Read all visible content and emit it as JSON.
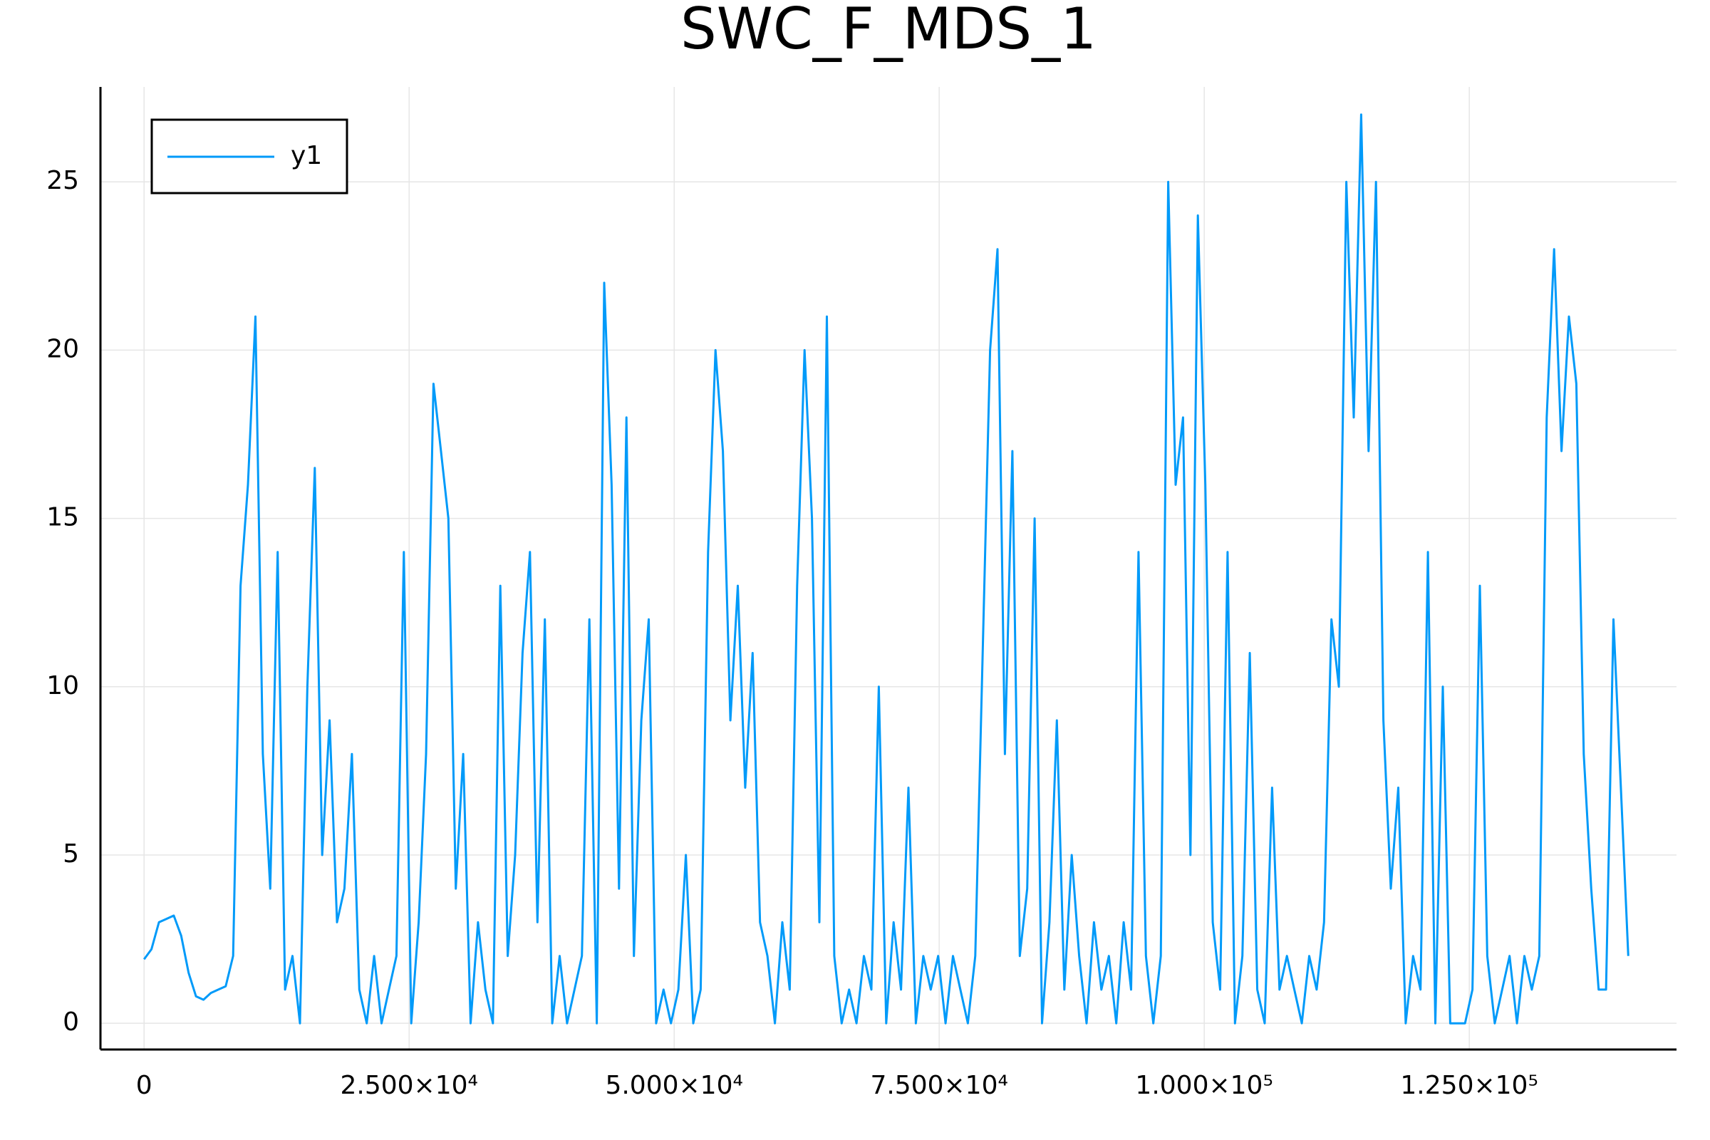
{
  "chart_data": {
    "type": "line",
    "title": "SWC_F_MDS_1",
    "grid": true,
    "legend": "top-left",
    "x": [
      0,
      700,
      1400,
      2100,
      2800,
      3500,
      4200,
      4900,
      5600,
      6300,
      7000,
      7700,
      8400,
      9100,
      9800,
      10500,
      11200,
      11900,
      12600,
      13300,
      14000,
      14700,
      15400,
      16100,
      16800,
      17500,
      18200,
      18900,
      19600,
      20300,
      21000,
      21700,
      22400,
      23100,
      23800,
      24500,
      25200,
      25900,
      26600,
      27300,
      28000,
      28700,
      29400,
      30100,
      30800,
      31500,
      32200,
      32900,
      33600,
      34300,
      35000,
      35700,
      36400,
      37100,
      37800,
      38500,
      39200,
      39900,
      40600,
      41300,
      42000,
      42700,
      43400,
      44100,
      44800,
      45500,
      46200,
      46900,
      47600,
      48300,
      49000,
      49700,
      50400,
      51100,
      51800,
      52500,
      53200,
      53900,
      54600,
      55300,
      56000,
      56700,
      57400,
      58100,
      58800,
      59500,
      60200,
      60900,
      61600,
      62300,
      63000,
      63700,
      64400,
      65100,
      65800,
      66500,
      67200,
      67900,
      68600,
      69300,
      70000,
      70700,
      71400,
      72100,
      72800,
      73500,
      74200,
      74900,
      75600,
      76300,
      77000,
      77700,
      78400,
      79100,
      79800,
      80500,
      81200,
      81900,
      82600,
      83300,
      84000,
      84700,
      85400,
      86100,
      86800,
      87500,
      88200,
      88900,
      89600,
      90300,
      91000,
      91700,
      92400,
      93100,
      93800,
      94500,
      95200,
      95900,
      96600,
      97300,
      98000,
      98700,
      99400,
      100100,
      100800,
      101500,
      102200,
      102900,
      103600,
      104300,
      105000,
      105700,
      106400,
      107100,
      107800,
      108500,
      109200,
      109900,
      110600,
      111300,
      112000,
      112700,
      113400,
      114100,
      114800,
      115500,
      116200,
      116900,
      117600,
      118300,
      119000,
      119700,
      120400,
      121100,
      121800,
      122500,
      123200,
      123900,
      124600,
      125300,
      126000,
      126700,
      127400,
      128100,
      128800,
      129500,
      130200,
      130900,
      131600,
      132300,
      133000,
      133700,
      134400,
      135100,
      135800,
      136500,
      137200,
      137900,
      138600,
      139300,
      140000
    ],
    "series": [
      {
        "name": "y1",
        "color": "#009af9",
        "values": [
          1.9,
          2.2,
          3.0,
          3.1,
          3.2,
          2.6,
          1.5,
          0.8,
          0.7,
          0.9,
          1.0,
          1.1,
          2,
          13,
          16,
          21,
          8,
          4,
          14,
          1,
          2,
          0,
          10,
          16.5,
          5,
          9,
          3,
          4,
          8,
          1,
          0,
          2,
          0,
          1,
          2,
          14,
          0,
          3,
          8,
          19,
          17,
          15,
          4,
          8,
          0,
          3,
          1,
          0,
          13,
          2,
          5,
          11,
          14,
          3,
          12,
          0,
          2,
          0,
          1,
          2,
          12,
          0,
          22,
          16,
          4,
          18,
          2,
          9,
          12,
          0,
          1,
          0,
          1,
          5,
          0,
          1,
          14,
          20,
          17,
          9,
          13,
          7,
          11,
          3,
          2,
          0,
          3,
          1,
          13,
          20,
          15,
          3,
          21,
          2,
          0,
          1,
          0,
          2,
          1,
          10,
          0,
          3,
          1,
          7,
          0,
          2,
          1,
          2,
          0,
          2,
          1,
          0,
          2,
          11,
          20,
          23,
          8,
          17,
          2,
          4,
          15,
          0,
          3,
          9,
          1,
          5,
          2,
          0,
          3,
          1,
          2,
          0,
          3,
          1,
          14,
          2,
          0,
          2,
          25,
          16,
          18,
          5,
          24,
          16,
          3,
          1,
          14,
          0,
          2,
          11,
          1,
          0,
          7,
          1,
          2,
          1,
          0,
          2,
          1,
          3,
          12,
          10,
          25,
          18,
          27,
          17,
          25,
          9,
          4,
          7,
          0,
          2,
          1,
          14,
          0,
          10,
          0,
          0,
          0,
          1,
          13,
          2,
          0,
          1,
          2,
          0,
          2,
          1,
          2,
          18,
          23,
          17,
          21,
          19,
          8,
          4,
          1,
          1,
          12,
          7,
          2
        ]
      }
    ],
    "xlim": [
      -4115,
      144547
    ],
    "ylim": [
      -0.78,
      27.82
    ],
    "xticks": [
      0,
      {
        "value": 25000,
        "label": "2.500×10⁴"
      },
      {
        "value": 50000,
        "label": "5.000×10⁴"
      },
      {
        "value": 75000,
        "label": "7.500×10⁴"
      },
      {
        "value": 100000,
        "label": "1.000×10⁵"
      },
      {
        "value": 125000,
        "label": "1.250×10⁵"
      }
    ],
    "yticks": [
      0,
      5,
      10,
      15,
      20,
      25
    ]
  }
}
